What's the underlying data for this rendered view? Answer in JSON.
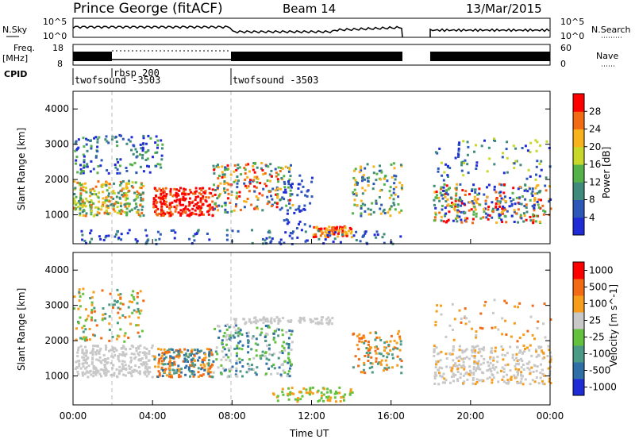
{
  "header": {
    "station": "Prince George (fitACF)",
    "beam": "Beam 14",
    "date": "13/Mar/2015"
  },
  "noise_panel": {
    "left_label": "N.Sky",
    "right_label": "N.Search",
    "left_ticks": [
      "10^5",
      "10^0"
    ],
    "right_ticks": [
      "10^5",
      "10^0"
    ]
  },
  "freq_panel": {
    "left_label_1": "Freq.",
    "left_label_2": "[MHz]",
    "right_label": "Nave",
    "left_ticks": [
      "18",
      "8"
    ],
    "right_ticks": [
      "60",
      "0"
    ]
  },
  "cpid_panel": {
    "label": "CPID",
    "programs": [
      {
        "name": "twofsound -3503",
        "start_hour": 0
      },
      {
        "name": "rbsp 200",
        "start_hour": 2
      },
      {
        "name": "twofsound -3503",
        "start_hour": 8
      }
    ]
  },
  "chart_data": [
    {
      "type": "heatmap",
      "title": "",
      "ylabel": "Slant Range [km]",
      "yticks": [
        "1000",
        "2000",
        "3000",
        "4000"
      ],
      "ylim": [
        180,
        4500
      ],
      "colorbar": {
        "label": "Power [dB]",
        "ticks": [
          "4",
          "8",
          "12",
          "16",
          "20",
          "24",
          "28"
        ],
        "colors": [
          "#1f2bd6",
          "#2e58b8",
          "#3f8a7a",
          "#55b24a",
          "#c8d82a",
          "#f7b21c",
          "#f26a14",
          "#ff0000"
        ]
      }
    },
    {
      "type": "heatmap",
      "title": "",
      "ylabel": "Slant Range [km]",
      "yticks": [
        "1000",
        "2000",
        "3000",
        "4000"
      ],
      "ylim": [
        180,
        4500
      ],
      "colorbar": {
        "label": "Velocity [m s^-1]",
        "ticks": [
          "1000",
          "500",
          "100",
          "25",
          "-25",
          "-100",
          "-500",
          "-1000"
        ],
        "colors": [
          "#1f2bd6",
          "#2f6fa8",
          "#4b9a86",
          "#63c13e",
          "#c8c8c8",
          "#f79d1c",
          "#f26a14",
          "#ff0000"
        ]
      }
    }
  ],
  "x_axis": {
    "label": "Time UT",
    "ticks": [
      "00:00",
      "04:00",
      "08:00",
      "12:00",
      "16:00",
      "20:00",
      "00:00"
    ],
    "range_hours": [
      0,
      24
    ]
  }
}
